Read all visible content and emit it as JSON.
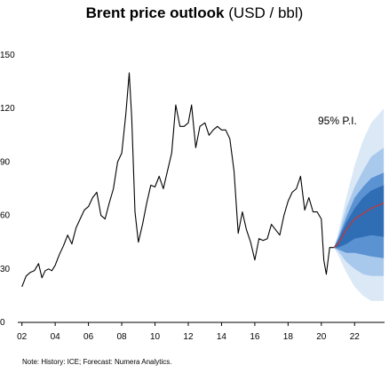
{
  "title": {
    "main": "Brent price outlook",
    "unit": "(USD / bbl)"
  },
  "annotation": "95% P.I.",
  "footnote": "Note: History: ICE; Forecast: Numera Analytics.",
  "colors": {
    "history": "#000000",
    "median": "#c0393b",
    "band_95": "#dbe8f6",
    "band_80": "#a9c9ec",
    "band_50": "#5b92d2",
    "band_inner": "#2f6db5",
    "axis": "#000000"
  },
  "chart_data": {
    "type": "line",
    "title": "Brent price outlook (USD / bbl)",
    "xlabel": "",
    "ylabel": "",
    "xlim": [
      2001.75,
      2023.8
    ],
    "ylim": [
      0,
      150
    ],
    "y_ticks": [
      0,
      30,
      60,
      90,
      120,
      150
    ],
    "x_ticks": [
      2002,
      2004,
      2006,
      2008,
      2010,
      2012,
      2014,
      2016,
      2018,
      2020,
      2022
    ],
    "x_tick_labels": [
      "02",
      "04",
      "06",
      "08",
      "10",
      "12",
      "14",
      "16",
      "18",
      "20",
      "22"
    ],
    "grid": false,
    "series": [
      {
        "kind": "history",
        "x": [
          2002.0,
          2002.25,
          2002.5,
          2002.75,
          2003.0,
          2003.2,
          2003.4,
          2003.6,
          2003.8,
          2004.0,
          2004.25,
          2004.5,
          2004.75,
          2005.0,
          2005.25,
          2005.5,
          2005.75,
          2006.0,
          2006.25,
          2006.5,
          2006.75,
          2007.0,
          2007.25,
          2007.5,
          2007.75,
          2008.0,
          2008.25,
          2008.45,
          2008.6,
          2008.8,
          2009.0,
          2009.25,
          2009.5,
          2009.75,
          2010.0,
          2010.25,
          2010.5,
          2010.75,
          2011.0,
          2011.25,
          2011.5,
          2011.75,
          2012.0,
          2012.2,
          2012.45,
          2012.7,
          2013.0,
          2013.25,
          2013.5,
          2013.75,
          2014.0,
          2014.25,
          2014.5,
          2014.75,
          2015.0,
          2015.25,
          2015.5,
          2015.75,
          2016.0,
          2016.25,
          2016.5,
          2016.75,
          2017.0,
          2017.25,
          2017.5,
          2017.75,
          2018.0,
          2018.25,
          2018.5,
          2018.75,
          2019.0,
          2019.25,
          2019.5,
          2019.75,
          2020.0,
          2020.15,
          2020.3,
          2020.5,
          2020.75,
          2021.0
        ],
        "y": [
          20,
          26,
          28,
          29,
          33,
          25,
          29,
          30,
          29,
          32,
          38,
          43,
          49,
          44,
          53,
          58,
          63,
          65,
          70,
          73,
          60,
          58,
          67,
          75,
          90,
          95,
          117,
          140,
          115,
          62,
          45,
          55,
          67,
          77,
          76,
          82,
          75,
          85,
          95,
          122,
          110,
          110,
          112,
          122,
          98,
          110,
          112,
          105,
          108,
          110,
          108,
          108,
          103,
          85,
          50,
          62,
          52,
          45,
          35,
          47,
          46,
          47,
          55,
          52,
          49,
          60,
          68,
          73,
          75,
          82,
          63,
          70,
          62,
          62,
          58,
          35,
          27,
          42,
          42,
          44
        ]
      },
      {
        "kind": "forecast-median",
        "x": [
          2020.75,
          2021.0,
          2021.5,
          2022.0,
          2022.5,
          2023.0,
          2023.75
        ],
        "y": [
          42,
          44,
          52,
          58,
          61,
          64,
          67
        ]
      }
    ],
    "forecast_bands": [
      {
        "level": "95%",
        "x": [
          2020.75,
          2021.0,
          2021.5,
          2022.0,
          2022.5,
          2023.0,
          2023.75
        ],
        "lower": [
          42,
          38,
          28,
          20,
          15,
          12,
          12
        ],
        "upper": [
          42,
          50,
          70,
          88,
          102,
          112,
          120
        ]
      },
      {
        "level": "80%",
        "x": [
          2020.75,
          2021.0,
          2021.5,
          2022.0,
          2022.5,
          2023.0,
          2023.75
        ],
        "lower": [
          42,
          40,
          34,
          30,
          27,
          26,
          26
        ],
        "upper": [
          42,
          48,
          64,
          76,
          85,
          93,
          98
        ]
      },
      {
        "level": "50%",
        "x": [
          2020.75,
          2021.0,
          2021.5,
          2022.0,
          2022.5,
          2023.0,
          2023.75
        ],
        "lower": [
          42,
          41,
          39,
          39,
          38,
          37,
          36
        ],
        "upper": [
          42,
          47,
          59,
          70,
          76,
          81,
          84
        ]
      },
      {
        "level": "inner",
        "x": [
          2020.75,
          2021.0,
          2021.5,
          2022.0,
          2022.5,
          2023.0,
          2023.75
        ],
        "lower": [
          42,
          42,
          44,
          47,
          48,
          49,
          48
        ],
        "upper": [
          42,
          46,
          56,
          64,
          70,
          74,
          77
        ]
      }
    ]
  }
}
